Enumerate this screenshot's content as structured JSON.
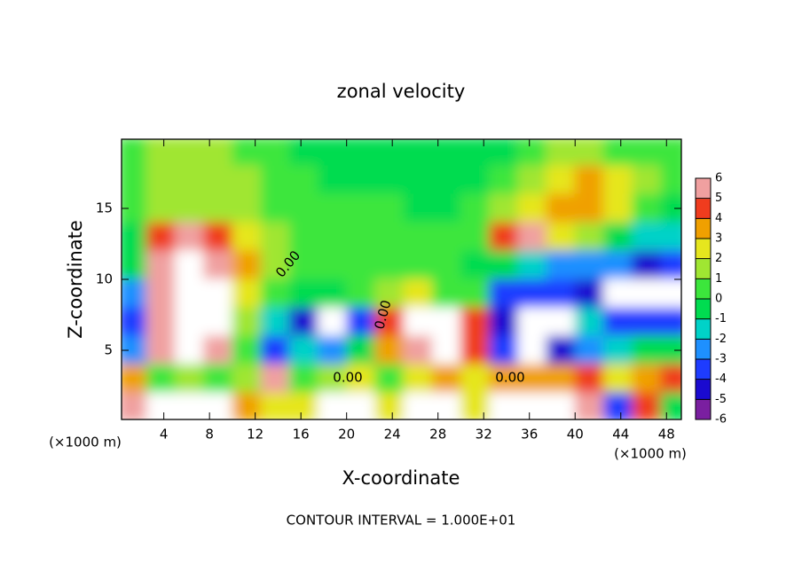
{
  "chart_data": {
    "type": "heatmap",
    "title": "zonal velocity",
    "x_label": "X-coordinate",
    "y_label": "Z-coordinate",
    "x_unit": "(×1000 m)",
    "y_unit": "(×1000 m)",
    "footer": "CONTOUR INTERVAL = 1.000E+01",
    "contour_labels": [
      "0.00",
      "0.00",
      "0.00",
      "0.00"
    ],
    "xlim": [
      0.3,
      49.3
    ],
    "ylim": [
      0.125,
      19.875
    ],
    "xticks": [
      4,
      8,
      12,
      16,
      20,
      24,
      28,
      32,
      36,
      40,
      44,
      48
    ],
    "yticks": [
      5,
      10,
      15
    ],
    "clim": [
      -6,
      6
    ],
    "cticks": [
      -6,
      -5,
      -4,
      -3,
      -2,
      -1,
      0,
      1,
      2,
      3,
      4,
      5,
      6
    ],
    "colorscale": [
      "#7a1fa0",
      "#1a0ad0",
      "#1e3cff",
      "#1e90ff",
      "#00d2c8",
      "#00dc50",
      "#3ce63c",
      "#a0e632",
      "#e6e61e",
      "#f0a000",
      "#f03c1e",
      "#f0a0a0"
    ],
    "out_of_range_color": "#ffffff",
    "x": [
      1.25,
      3.75,
      6.25,
      8.75,
      11.25,
      13.75,
      16.25,
      18.75,
      21.25,
      23.75,
      26.25,
      28.75,
      31.25,
      33.75,
      36.25,
      38.75,
      41.25,
      43.75,
      46.25,
      48.75
    ],
    "y": [
      19,
      17,
      15,
      13,
      11,
      9,
      7,
      5,
      3,
      1
    ],
    "z": [
      [
        0.5,
        1,
        1,
        1,
        0.5,
        0,
        -0.3,
        -0.5,
        -0.5,
        -1,
        -1,
        -1,
        -1,
        -0.5,
        0.5,
        1,
        1,
        0.5,
        0,
        0.5
      ],
      [
        0.5,
        1,
        1,
        1,
        1,
        0.5,
        0,
        -0.5,
        -0.5,
        -0.5,
        -1,
        -1,
        -0.5,
        0,
        1,
        2,
        3,
        2,
        1,
        0
      ],
      [
        0,
        1,
        1,
        1,
        1,
        0.5,
        0.5,
        0,
        0,
        0,
        -0.5,
        -0.5,
        0,
        1,
        2,
        3,
        3,
        2,
        0,
        -1
      ],
      [
        -0.5,
        4,
        5,
        4,
        2,
        1,
        0.5,
        0,
        0,
        0,
        0,
        0,
        0.5,
        4,
        5,
        2,
        1,
        -1,
        -2,
        -2
      ],
      [
        -1,
        5,
        8,
        6,
        3,
        1,
        0.5,
        0.5,
        0,
        0.5,
        0.5,
        0,
        -1,
        -1,
        -2,
        -3,
        -3,
        -3,
        -5,
        -4
      ],
      [
        -3,
        5,
        8,
        8,
        2,
        0,
        -0.5,
        -1,
        0,
        1,
        2,
        0.5,
        0,
        -4,
        -4,
        -4,
        -5,
        -8,
        -8,
        -8
      ],
      [
        -4,
        5,
        8,
        8,
        1,
        -2,
        -5,
        -8,
        -4,
        4,
        8,
        8,
        4,
        -5,
        -8,
        -8,
        -2,
        -4,
        -4,
        -4
      ],
      [
        -3,
        5,
        8,
        6,
        0,
        -4,
        -2,
        -3,
        -1,
        3,
        6,
        7,
        4,
        -4,
        -8,
        -5,
        -3,
        -2,
        -1,
        -1
      ],
      [
        3,
        0,
        1,
        0.5,
        1,
        5,
        0,
        1,
        2,
        0,
        2,
        3,
        2,
        3,
        3,
        3,
        4,
        2,
        3,
        4
      ],
      [
        5,
        8,
        8,
        8,
        3,
        2,
        2,
        8,
        8,
        2,
        8,
        8,
        2,
        8,
        8,
        8,
        5,
        -4,
        4,
        -1
      ]
    ]
  }
}
